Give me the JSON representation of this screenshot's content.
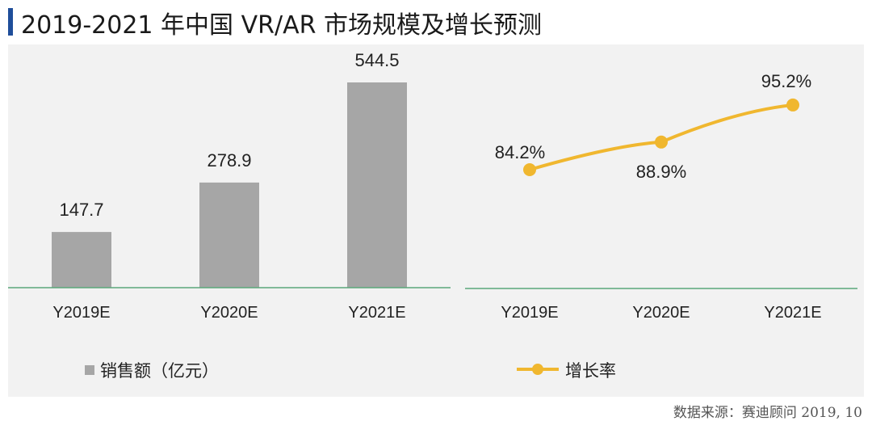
{
  "title": "2019-2021 年中国 VR/AR 市场规模及增长预测",
  "source": "数据来源：赛迪顾问    2019, 10",
  "colors": {
    "bar": "#a6a6a6",
    "line": "#f0b72f",
    "axis": "#5aa87a",
    "accent": "#1f4e9a"
  },
  "chart_data": [
    {
      "type": "bar",
      "categories": [
        "Y2019E",
        "Y2020E",
        "Y2021E"
      ],
      "series": [
        {
          "name": "销售额（亿元）",
          "values": [
            147.7,
            278.9,
            544.5
          ]
        }
      ],
      "value_labels": [
        "147.7",
        "278.9",
        "544.5"
      ],
      "ylim": [
        0,
        544.5
      ],
      "legend": "bottom-left",
      "grid": false
    },
    {
      "type": "line",
      "categories": [
        "Y2019E",
        "Y2020E",
        "Y2021E"
      ],
      "series": [
        {
          "name": "增长率",
          "values": [
            84.2,
            88.9,
            95.2
          ]
        }
      ],
      "value_labels": [
        "84.2%",
        "88.9%",
        "95.2%"
      ],
      "ylim": [
        64,
        100
      ],
      "legend": "bottom-center",
      "grid": false
    }
  ]
}
